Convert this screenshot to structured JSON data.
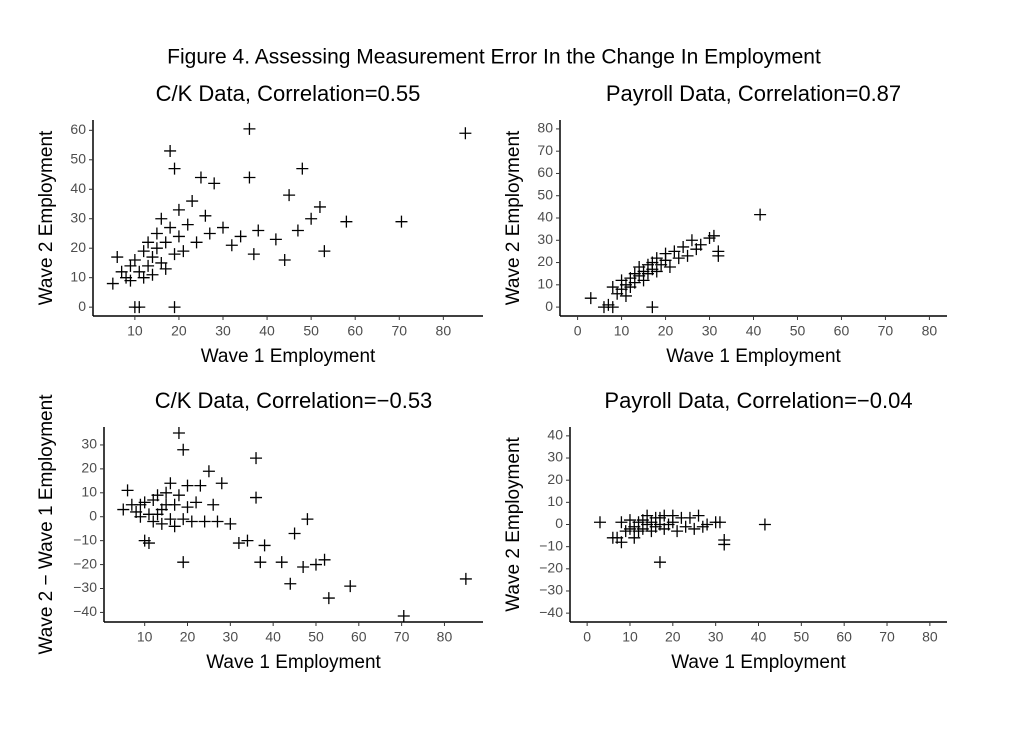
{
  "title": "Figure 4. Assessing Measurement Error In the Change In Employment",
  "chart_data": [
    {
      "type": "scatter",
      "title": "C/K Data, Correlation=0.55",
      "x_label": "Wave 1 Employment",
      "y_label": "Wave 2 Employment",
      "color": "#000000",
      "x": [
        5,
        6,
        7,
        8,
        9,
        9,
        10,
        10,
        11,
        11,
        12,
        12,
        13,
        13,
        14,
        14,
        15,
        15,
        16,
        16,
        17,
        17,
        18,
        18,
        19,
        19,
        19,
        20,
        20,
        21,
        22,
        23,
        24,
        25,
        26,
        27,
        28,
        30,
        32,
        34,
        36,
        36,
        37,
        38,
        42,
        44,
        45,
        47,
        48,
        50,
        52,
        53,
        58,
        70.5,
        85
      ],
      "y": [
        8,
        17,
        12,
        10,
        14,
        9,
        0,
        16,
        12,
        0,
        10,
        19,
        14,
        22,
        17,
        11,
        20,
        25,
        15,
        30,
        22,
        13,
        27,
        53,
        47,
        18,
        0,
        24,
        33,
        19,
        28,
        36,
        22,
        44,
        31,
        25,
        42,
        27,
        21,
        24,
        44,
        60.5,
        18,
        26,
        23,
        16,
        38,
        26,
        47,
        30,
        34,
        19,
        29,
        29,
        59
      ],
      "xlim": [
        0.5,
        89
      ],
      "ylim": [
        -3,
        63.5
      ],
      "xticks": [
        10,
        20,
        30,
        40,
        50,
        60,
        70,
        80
      ],
      "yticks": [
        0,
        10,
        20,
        30,
        40,
        50,
        60
      ]
    },
    {
      "type": "scatter",
      "title": "Payroll Data, Correlation=0.87",
      "x_label": "Wave 1 Employment",
      "y_label": "Wave 2 Employment",
      "color": "#000000",
      "x": [
        3,
        6,
        7,
        8,
        8,
        9,
        10,
        10,
        11,
        11,
        12,
        12,
        13,
        13,
        14,
        14,
        15,
        15,
        16,
        16,
        17,
        17,
        17,
        18,
        18,
        19,
        20,
        20,
        21,
        22,
        23,
        24,
        25,
        26,
        27,
        28,
        30,
        31,
        32,
        32,
        41.5
      ],
      "y": [
        4,
        0,
        1,
        0,
        9,
        6,
        8,
        12,
        10,
        5,
        13,
        9,
        15,
        11,
        14,
        18,
        16,
        12,
        19,
        15,
        0,
        20,
        17,
        22,
        16,
        19,
        24,
        21,
        18,
        25,
        22,
        27,
        23,
        30,
        26,
        28,
        31,
        32,
        25,
        23,
        41.5
      ],
      "xlim": [
        -4,
        84
      ],
      "ylim": [
        -4,
        84
      ],
      "xticks": [
        0,
        10,
        20,
        30,
        40,
        50,
        60,
        70,
        80
      ],
      "yticks": [
        0,
        10,
        20,
        30,
        40,
        50,
        60,
        70,
        80
      ]
    },
    {
      "type": "scatter",
      "title": "C/K Data, Correlation=−0.53",
      "x_label": "Wave 1 Employment",
      "y_label": "Wave 2 − Wave 1 Employment",
      "color": "#000000",
      "x": [
        5,
        6,
        7,
        8,
        9,
        9,
        10,
        10,
        11,
        11,
        12,
        12,
        13,
        13,
        14,
        14,
        15,
        15,
        16,
        16,
        17,
        17,
        18,
        18,
        19,
        19,
        19,
        20,
        20,
        21,
        22,
        23,
        24,
        25,
        26,
        27,
        28,
        30,
        32,
        34,
        36,
        36,
        37,
        38,
        42,
        44,
        45,
        47,
        48,
        50,
        52,
        53,
        58,
        70.5,
        85
      ],
      "y": [
        3,
        11,
        5,
        2,
        5,
        0,
        -10,
        6,
        1,
        -11,
        -2,
        7,
        1,
        9,
        3,
        -3,
        5,
        10,
        -1,
        14,
        5,
        -4,
        9,
        35,
        28,
        -1,
        -19,
        4,
        13,
        -2,
        6,
        13,
        -2,
        19,
        5,
        -2,
        14,
        -3,
        -11,
        -10,
        8,
        24.5,
        -19,
        -12,
        -19,
        -28,
        -7,
        -21,
        -1,
        -20,
        -18,
        -34,
        -29,
        -41.5,
        -26
      ],
      "xlim": [
        0.5,
        89
      ],
      "ylim": [
        -44,
        37.5
      ],
      "xticks": [
        10,
        20,
        30,
        40,
        50,
        60,
        70,
        80
      ],
      "yticks": [
        {
          "value": -40,
          "label": "−40"
        },
        {
          "value": -30,
          "label": "−30"
        },
        {
          "value": -20,
          "label": "−20"
        },
        {
          "value": -10,
          "label": "−10"
        },
        0,
        10,
        20,
        30
      ]
    },
    {
      "type": "scatter",
      "title": "Payroll Data, Correlation=−0.04",
      "x_label": "Wave 1 Employment",
      "y_label": "Wave 2 Employment",
      "color": "#000000",
      "x": [
        3,
        6,
        7,
        8,
        8,
        9,
        10,
        10,
        11,
        11,
        12,
        12,
        13,
        13,
        14,
        14,
        15,
        15,
        16,
        16,
        17,
        17,
        17,
        18,
        18,
        19,
        20,
        20,
        21,
        22,
        23,
        24,
        25,
        26,
        27,
        28,
        30,
        31,
        32,
        32,
        41.5
      ],
      "y": [
        1,
        -6,
        -6,
        -8,
        1,
        -3,
        -2,
        2,
        -1,
        -6,
        1,
        -3,
        2,
        -2,
        0,
        4,
        1,
        -3,
        3,
        -1,
        -17,
        3,
        0,
        4,
        -2,
        0,
        4,
        1,
        -3,
        3,
        -1,
        3,
        -2,
        4,
        -1,
        0,
        1,
        1,
        -7,
        -9,
        0
      ],
      "xlim": [
        -4,
        84
      ],
      "ylim": [
        -44,
        44
      ],
      "xticks": [
        0,
        10,
        20,
        30,
        40,
        50,
        60,
        70,
        80
      ],
      "yticks": [
        {
          "value": -40,
          "label": "−40"
        },
        {
          "value": -30,
          "label": "−30"
        },
        {
          "value": -20,
          "label": "−20"
        },
        {
          "value": -10,
          "label": "−10"
        },
        0,
        10,
        20,
        30,
        40
      ]
    }
  ]
}
